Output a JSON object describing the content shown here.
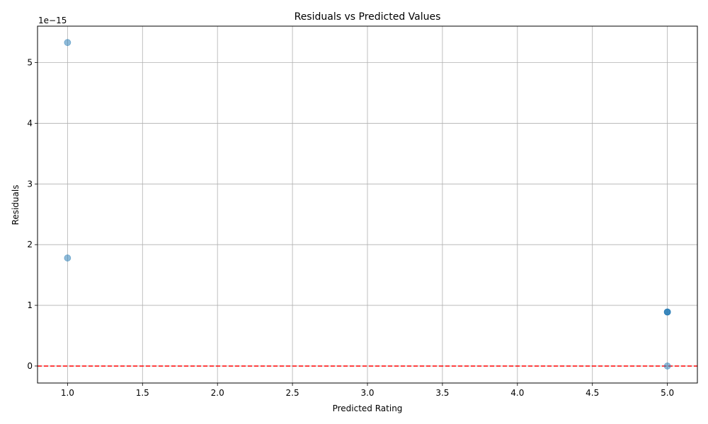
{
  "chart_data": {
    "type": "scatter",
    "title": "Residuals vs Predicted Values",
    "xlabel": "Predicted Rating",
    "ylabel": "Residuals",
    "offset_text": "1e−15",
    "y_unit_scale": 1e-15,
    "xlim": [
      0.8,
      5.2
    ],
    "ylim": [
      -0.28,
      5.6
    ],
    "x_ticks": [
      1.0,
      1.5,
      2.0,
      2.5,
      3.0,
      3.5,
      4.0,
      4.5,
      5.0
    ],
    "x_tick_labels": [
      "1.0",
      "1.5",
      "2.0",
      "2.5",
      "3.0",
      "3.5",
      "4.0",
      "4.5",
      "5.0"
    ],
    "y_ticks": [
      0,
      1,
      2,
      3,
      4,
      5
    ],
    "y_tick_labels": [
      "0",
      "1",
      "2",
      "3",
      "4",
      "5"
    ],
    "grid": true,
    "points": [
      {
        "x": 1.0,
        "y": 5.33
      },
      {
        "x": 1.0,
        "y": 1.78
      },
      {
        "x": 5.0,
        "y": 0.89
      },
      {
        "x": 5.0,
        "y": 0.89
      },
      {
        "x": 5.0,
        "y": 0.89
      },
      {
        "x": 5.0,
        "y": 0.0
      }
    ],
    "reference_line": {
      "y": 0,
      "style": "dashed"
    },
    "colors": {
      "point": "#1f77b4",
      "reference_line": "#ff0000",
      "grid": "#b0b0b0",
      "axes": "#000000"
    }
  }
}
